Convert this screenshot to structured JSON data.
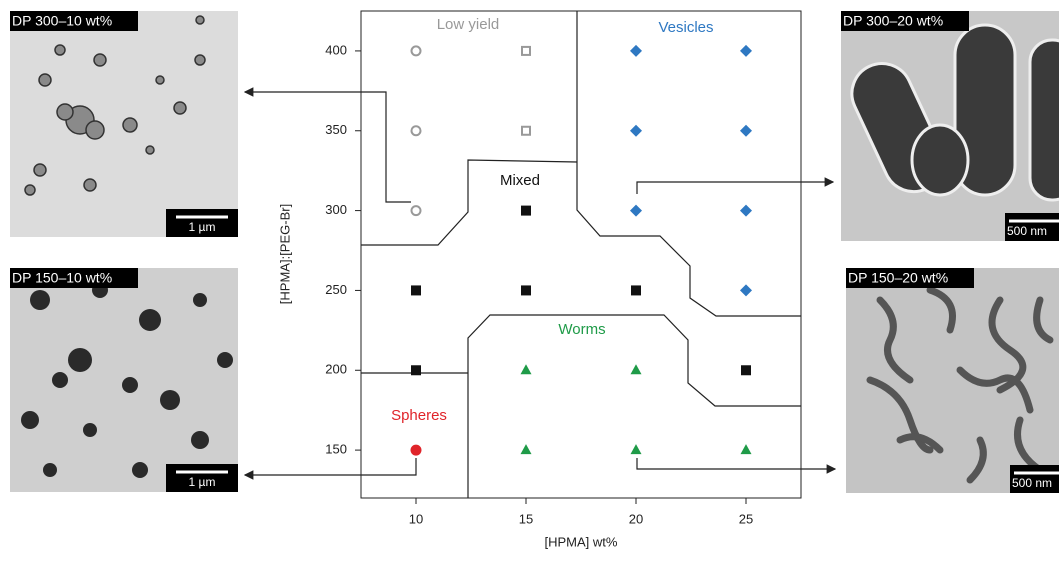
{
  "chart_data": {
    "type": "scatter",
    "x_label": "[HPMA] wt%",
    "y_label": "[HPMA]:[PEG-Br]",
    "xlim": [
      7.5,
      27.5
    ],
    "ylim": [
      120,
      425
    ],
    "xticks": [
      10,
      15,
      20,
      25
    ],
    "yticks": [
      150,
      200,
      250,
      300,
      350,
      400
    ],
    "series": [
      {
        "marker": "open-circle",
        "color": "#999999",
        "x": [
          10,
          10,
          10
        ],
        "values": [
          400,
          350,
          300
        ]
      },
      {
        "marker": "open-square",
        "color": "#999999",
        "x": [
          15,
          15
        ],
        "values": [
          400,
          350
        ]
      },
      {
        "marker": "diamond",
        "color": "#2e78c2",
        "x": [
          20,
          25,
          20,
          25,
          20,
          25,
          25
        ],
        "values": [
          400,
          400,
          350,
          350,
          300,
          300,
          250
        ]
      },
      {
        "marker": "square",
        "color": "#111111",
        "x": [
          15,
          10,
          15,
          20,
          10,
          25
        ],
        "values": [
          300,
          250,
          250,
          250,
          200,
          200
        ]
      },
      {
        "marker": "triangle",
        "color": "#1f9b48",
        "x": [
          15,
          20,
          15,
          20,
          25
        ],
        "values": [
          200,
          200,
          150,
          150,
          150
        ]
      },
      {
        "marker": "circle",
        "color": "#e0242a",
        "x": [
          10
        ],
        "values": [
          150
        ]
      }
    ],
    "regions": [
      {
        "label": "Low yield",
        "color": "#999999"
      },
      {
        "label": "Vesicles",
        "color": "#2e78c2"
      },
      {
        "label": "Mixed",
        "color": "#111111"
      },
      {
        "label": "Worms",
        "color": "#1f9b48"
      },
      {
        "label": "Spheres",
        "color": "#e0242a"
      }
    ]
  },
  "panels": [
    {
      "label": "DP 300–10 wt%",
      "scale_bar": "1 µm"
    },
    {
      "label": "DP 150–10 wt%",
      "scale_bar": "1 µm"
    },
    {
      "label": "DP 300–20 wt%",
      "scale_bar": "500 nm"
    },
    {
      "label": "DP 150–20 wt%",
      "scale_bar": "500 nm"
    }
  ]
}
